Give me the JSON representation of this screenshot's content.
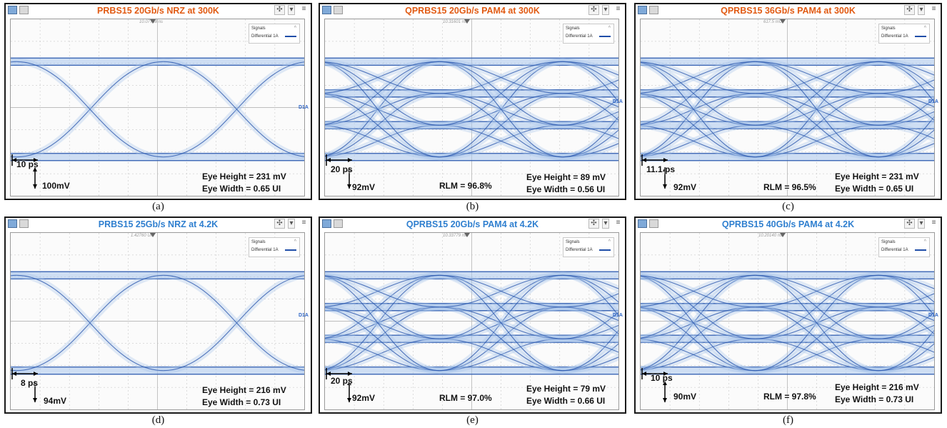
{
  "colors": {
    "title_300k": "#e15a12",
    "title_4k2": "#2f7fcf",
    "trace": "#1f4ea8",
    "trace_light": "#a9c6ec",
    "grid": "#bdbdbd"
  },
  "panels": [
    {
      "title": "PRBS15 20Gb/s NRZ at 300K",
      "title_color": "#e15a12",
      "readout": "10.07748 ns",
      "legend_title": "Signals",
      "legend_trace": "Differential 1A",
      "channel_label": "D1A",
      "time_scale": "10 ps",
      "volt_scale": "100mV",
      "rlm": "",
      "eye_height": "Eye Height = 231 mV",
      "eye_width": "Eye Width = 0.65 UI",
      "caption": "(a)",
      "type": "NRZ",
      "levels": 2
    },
    {
      "title": "QPRBS15 20Gb/s PAM4 at 300K",
      "title_color": "#e15a12",
      "readout": "10.31601 ns",
      "legend_title": "Signals",
      "legend_trace": "Differential 1A",
      "channel_label": "D1A",
      "time_scale": "20 ps",
      "volt_scale": "92mV",
      "rlm": "RLM = 96.8%",
      "eye_height": "Eye Height = 89 mV",
      "eye_width": "Eye Width = 0.56 UI",
      "caption": "(b)",
      "type": "PAM4",
      "levels": 4
    },
    {
      "title": "QPRBS15 36Gb/s PAM4 at 300K",
      "title_color": "#e15a12",
      "readout": "617.5 mUI",
      "legend_title": "Signals",
      "legend_trace": "Differential 1A",
      "channel_label": "D1A",
      "time_scale": "11.1 ps",
      "volt_scale": "92mV",
      "rlm": "RLM = 96.5%",
      "eye_height": "Eye Height = 231 mV",
      "eye_width": "Eye Width = 0.65 UI",
      "caption": "(c)",
      "type": "PAM4",
      "levels": 4
    },
    {
      "title": "PRBS15 25Gb/s NRZ at 4.2K",
      "title_color": "#2f7fcf",
      "readout": "1.42760 UI",
      "legend_title": "Signals",
      "legend_trace": "Differential 1A",
      "channel_label": "D1A",
      "time_scale": "8 ps",
      "volt_scale": "94mV",
      "rlm": "",
      "eye_height": "Eye Height = 216 mV",
      "eye_width": "Eye Width = 0.73 UI",
      "caption": "(d)",
      "type": "NRZ",
      "levels": 2
    },
    {
      "title": "QPRBS15 20Gb/s PAM4 at 4.2K",
      "title_color": "#2f7fcf",
      "readout": "10.33779 ns",
      "legend_title": "Signals",
      "legend_trace": "Differential 1A",
      "channel_label": "D1A",
      "time_scale": "20 ps",
      "volt_scale": "92mV",
      "rlm": "RLM = 97.0%",
      "eye_height": "Eye Height = 79 mV",
      "eye_width": "Eye Width = 0.66 UI",
      "caption": "(e)",
      "type": "PAM4",
      "levels": 4
    },
    {
      "title": "QPRBS15 40Gb/s PAM4 at 4.2K",
      "title_color": "#2f7fcf",
      "readout": "10.20140 ns",
      "legend_title": "Signals",
      "legend_trace": "Differential 1A",
      "channel_label": "D1A",
      "time_scale": "10 ps",
      "volt_scale": "90mV",
      "rlm": "RLM = 97.8%",
      "eye_height": "Eye Height = 216 mV",
      "eye_width": "Eye Width = 0.73 UI",
      "caption": "(f)",
      "type": "PAM4",
      "levels": 4
    }
  ],
  "icons": [
    "window-icon",
    "thumbnail-icon",
    "move-icon",
    "dropdown-icon",
    "menu-icon"
  ]
}
